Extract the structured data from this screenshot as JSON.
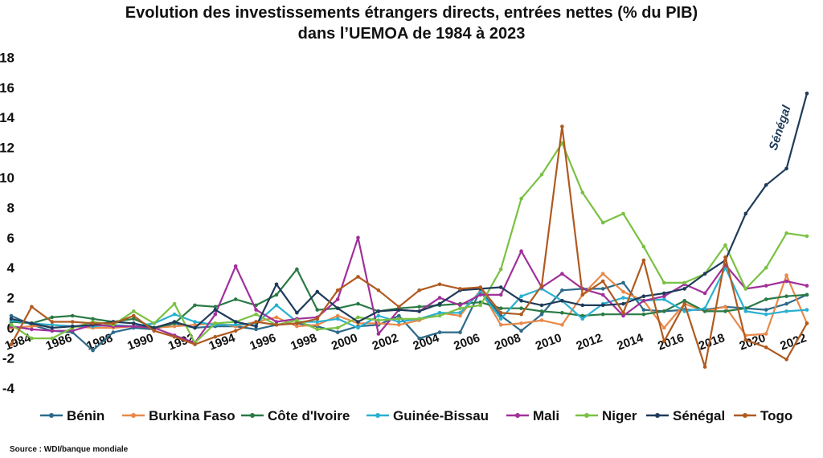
{
  "chart_data": {
    "type": "line",
    "title": "Evolution des investissements étrangers directs, entrées nettes (% du PIB)",
    "subtitle": "dans l’UEMOA de 1984 à 2023",
    "ylim": [
      -4,
      18
    ],
    "yticks": [
      -4,
      -2,
      0,
      2,
      4,
      6,
      8,
      10,
      12,
      14,
      16,
      18
    ],
    "x": [
      1984,
      1985,
      1986,
      1987,
      1988,
      1989,
      1990,
      1991,
      1992,
      1993,
      1994,
      1995,
      1996,
      1997,
      1998,
      1999,
      2000,
      2001,
      2002,
      2003,
      2004,
      2005,
      2006,
      2007,
      2008,
      2009,
      2010,
      2011,
      2012,
      2013,
      2014,
      2015,
      2016,
      2017,
      2018,
      2019,
      2020,
      2021,
      2022,
      2023
    ],
    "xticks": [
      1984,
      1986,
      1988,
      1990,
      1992,
      1994,
      1996,
      1998,
      2000,
      2002,
      2004,
      2006,
      2008,
      2010,
      2012,
      2014,
      2016,
      2018,
      2020,
      2022
    ],
    "legend_position": "bottom",
    "annotation": {
      "text": "Sénégal",
      "color": "#1f3b5a"
    },
    "series": [
      {
        "name": "Bénin",
        "color": "#2d6a8a",
        "values": [
          0.8,
          0.2,
          -0.2,
          -0.3,
          -1.5,
          -0.3,
          0.0,
          -0.1,
          0.3,
          0.0,
          0.1,
          0.1,
          -0.1,
          0.2,
          0.3,
          0.1,
          -0.3,
          0.1,
          0.2,
          0.8,
          -0.7,
          -0.3,
          -0.3,
          2.5,
          0.8,
          -0.2,
          0.9,
          2.5,
          2.6,
          2.6,
          3.0,
          1.2,
          1.1,
          1.2,
          1.2,
          1.4,
          1.3,
          1.2,
          1.6,
          2.2
        ]
      },
      {
        "name": "Burkina Faso",
        "color": "#e8894a",
        "values": [
          0.0,
          0.1,
          0.2,
          0.1,
          0.0,
          0.0,
          0.1,
          0.0,
          0.1,
          0.2,
          0.3,
          0.1,
          0.4,
          0.7,
          0.1,
          0.2,
          0.8,
          0.3,
          0.3,
          0.2,
          0.5,
          1.0,
          0.8,
          2.5,
          0.2,
          0.3,
          0.5,
          0.2,
          2.2,
          3.6,
          2.4,
          1.8,
          0.0,
          1.6,
          1.1,
          1.4,
          -0.5,
          -0.4,
          3.5,
          0.3
        ]
      },
      {
        "name": "Côte d'Ivoire",
        "color": "#2a7a45",
        "values": [
          0.4,
          0.3,
          0.7,
          0.8,
          0.6,
          0.4,
          0.6,
          0.0,
          0.3,
          1.5,
          1.4,
          1.9,
          1.5,
          2.2,
          3.9,
          1.2,
          1.3,
          1.6,
          1.1,
          1.3,
          1.4,
          1.5,
          1.6,
          1.7,
          1.3,
          1.3,
          1.1,
          1.0,
          0.8,
          0.9,
          0.9,
          0.9,
          1.1,
          1.8,
          1.1,
          1.1,
          1.3,
          1.9,
          2.1,
          2.2
        ]
      },
      {
        "name": "Guinée-Bissau",
        "color": "#2ab0d0",
        "values": [
          0.5,
          0.3,
          0.2,
          0.1,
          0.1,
          0.2,
          0.1,
          0.3,
          0.9,
          0.4,
          0.2,
          0.2,
          0.3,
          1.5,
          0.4,
          0.4,
          0.6,
          0.0,
          0.8,
          0.4,
          0.6,
          1.0,
          1.0,
          2.4,
          0.6,
          2.1,
          2.6,
          1.8,
          0.6,
          1.6,
          2.0,
          1.8,
          1.9,
          1.1,
          1.3,
          4.0,
          1.1,
          0.9,
          1.1,
          1.2
        ]
      },
      {
        "name": "Mali",
        "color": "#a0309a",
        "values": [
          0.1,
          -0.1,
          -0.2,
          -0.2,
          0.2,
          0.1,
          0.1,
          0.0,
          -0.5,
          -1.0,
          0.9,
          4.1,
          1.2,
          0.4,
          0.6,
          0.7,
          1.9,
          6.0,
          -0.4,
          1.2,
          1.1,
          2.0,
          1.5,
          2.2,
          2.2,
          5.1,
          2.7,
          3.6,
          2.6,
          2.2,
          0.8,
          1.8,
          2.1,
          2.9,
          2.3,
          4.2,
          2.6,
          2.8,
          3.1,
          2.8
        ]
      },
      {
        "name": "Niger",
        "color": "#7ac143",
        "values": [
          0.2,
          -0.7,
          -0.7,
          0.0,
          0.4,
          0.2,
          1.1,
          0.3,
          1.6,
          -1.0,
          0.3,
          0.4,
          0.9,
          0.2,
          0.5,
          -0.1,
          0.0,
          0.7,
          0.5,
          0.6,
          0.6,
          0.8,
          1.3,
          1.5,
          3.9,
          8.6,
          10.2,
          12.3,
          9.0,
          7.0,
          7.6,
          5.4,
          3.0,
          3.0,
          3.6,
          5.5,
          2.6,
          4.0,
          6.3,
          6.1
        ]
      },
      {
        "name": "Sénégal",
        "color": "#1f3b5a",
        "values": [
          0.6,
          0.3,
          0.0,
          0.1,
          0.2,
          0.4,
          0.3,
          0.0,
          0.4,
          0.0,
          1.2,
          0.4,
          0.1,
          2.9,
          1.0,
          2.4,
          1.3,
          0.4,
          1.1,
          1.2,
          1.1,
          1.6,
          2.5,
          2.6,
          2.7,
          1.8,
          1.5,
          1.8,
          1.5,
          1.5,
          1.6,
          2.1,
          2.3,
          2.6,
          3.6,
          4.5,
          7.6,
          9.5,
          10.6,
          15.6
        ]
      },
      {
        "name": "Togo",
        "color": "#b05a20",
        "values": [
          -1.1,
          1.4,
          0.4,
          0.4,
          0.3,
          0.3,
          0.8,
          -0.2,
          -0.6,
          -1.1,
          -0.6,
          -0.2,
          0.4,
          0.2,
          0.3,
          0.6,
          2.5,
          3.4,
          2.5,
          1.4,
          2.5,
          2.9,
          2.6,
          2.7,
          1.0,
          0.9,
          2.8,
          13.4,
          2.2,
          3.1,
          1.0,
          4.5,
          -0.9,
          1.6,
          -2.6,
          4.7,
          -0.8,
          -1.3,
          -2.1,
          0.3
        ]
      }
    ]
  },
  "source_text": "Source : WDI/banque mondiale"
}
